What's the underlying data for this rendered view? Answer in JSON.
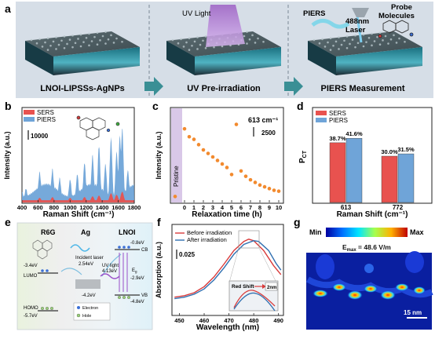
{
  "panel_letters": {
    "a": "a",
    "b": "b",
    "c": "c",
    "d": "d",
    "e": "e",
    "f": "f",
    "g": "g"
  },
  "panel_a": {
    "stage1": "LNOI-LIPSSs-AgNPs",
    "stage2": "UV Pre-irradiation",
    "stage3": "PIERS Measurement",
    "uv_light": "UV Light",
    "piers": "PIERS",
    "laser": "488nm\nLaser",
    "probe": "Probe\nMolecules",
    "colors": {
      "banner": "#d5dde6",
      "arrow": "#3a8f95",
      "uv": "#a675c8"
    }
  },
  "panel_b": {
    "xlabel": "Raman Shift (cm⁻¹)",
    "ylabel": "Intensity (a.u.)",
    "scalebar": "10000",
    "legend": [
      "SERS",
      "PIERS"
    ],
    "xticks": [
      "400",
      "600",
      "800",
      "1000",
      "1200",
      "1400",
      "1600",
      "1800"
    ],
    "chart_data": {
      "type": "area",
      "x_range": [
        400,
        1800
      ],
      "series": [
        {
          "name": "SERS",
          "color": "#e8524f",
          "peaks": [
            [
              400,
              0.03
            ],
            [
              620,
              0.06
            ],
            [
              780,
              0.07
            ],
            [
              1000,
              0.06
            ],
            [
              1180,
              0.07
            ],
            [
              1280,
              0.08
            ],
            [
              1360,
              0.09
            ],
            [
              1510,
              0.12
            ],
            [
              1580,
              0.1
            ],
            [
              1650,
              0.14
            ],
            [
              1800,
              0.03
            ]
          ]
        },
        {
          "name": "PIERS",
          "color": "#6fa4d8",
          "peaks": [
            [
              400,
              0.12
            ],
            [
              450,
              0.16
            ],
            [
              620,
              0.38
            ],
            [
              780,
              0.42
            ],
            [
              870,
              0.3
            ],
            [
              1000,
              0.28
            ],
            [
              1090,
              0.35
            ],
            [
              1180,
              0.5
            ],
            [
              1280,
              0.6
            ],
            [
              1360,
              0.72
            ],
            [
              1440,
              0.48
            ],
            [
              1510,
              0.82
            ],
            [
              1580,
              0.64
            ],
            [
              1620,
              0.85
            ],
            [
              1650,
              0.95
            ],
            [
              1720,
              0.4
            ],
            [
              1800,
              0.2
            ]
          ]
        }
      ]
    }
  },
  "panel_c": {
    "xlabel": "Relaxation time (h)",
    "ylabel": "Intensity (a.u.)",
    "peak_label": "613 cm⁻¹",
    "scalebar": "2500",
    "pristine": "Pristine",
    "xticks": [
      "0",
      "1",
      "2",
      "3",
      "4",
      "5",
      "6",
      "7",
      "8",
      "9",
      "10"
    ],
    "chart_data": {
      "type": "scatter",
      "xlim": [
        -1.5,
        10.5
      ],
      "ylim": [
        0,
        1
      ],
      "pristine_point": {
        "x": -1,
        "y": 0.05
      },
      "points": [
        [
          0,
          0.82
        ],
        [
          0.5,
          0.73
        ],
        [
          1,
          0.7
        ],
        [
          1.5,
          0.64
        ],
        [
          2,
          0.58
        ],
        [
          2.5,
          0.54
        ],
        [
          3,
          0.5
        ],
        [
          3.5,
          0.46
        ],
        [
          4,
          0.42
        ],
        [
          4.5,
          0.38
        ],
        [
          5,
          0.3
        ],
        [
          5.5,
          0.87
        ],
        [
          6,
          0.34
        ],
        [
          6.5,
          0.28
        ],
        [
          7,
          0.24
        ],
        [
          7.5,
          0.21
        ],
        [
          8,
          0.18
        ],
        [
          8.5,
          0.16
        ],
        [
          9,
          0.14
        ],
        [
          9.5,
          0.12
        ],
        [
          10,
          0.11
        ]
      ]
    }
  },
  "panel_d": {
    "ylabel": "P",
    "ylabel_sub": "CT",
    "xlabel": "Raman Shift (cm⁻¹)",
    "legend": [
      "SERS",
      "PIERS"
    ],
    "chart_data": {
      "type": "bar",
      "categories": [
        "613",
        "772"
      ],
      "series": [
        {
          "name": "SERS",
          "color": "#e8524f",
          "values": [
            38.7,
            30.0
          ],
          "labels": [
            "38.7%",
            "30.0%"
          ]
        },
        {
          "name": "PIERS",
          "color": "#6fa4d8",
          "values": [
            41.6,
            31.5
          ],
          "labels": [
            "41.6%",
            "31.5%"
          ]
        }
      ],
      "ylim": [
        0,
        60
      ]
    }
  },
  "panel_e": {
    "r6g": "R6G",
    "ag": "Ag",
    "lnoi": "LNOI",
    "lumo": "LUMO",
    "homo": "HOMO",
    "lumo_e": "-3.4eV",
    "homo_e": "-5.7eV",
    "incident": "Incident laser",
    "incident_e": "2.54eV",
    "ag_e": "-4.2eV",
    "uv": "UV light",
    "uv_e": "4.13eV",
    "cb": "CB",
    "vb": "VB",
    "cb_e": "-0.8eV",
    "vb_e": "-4.8eV",
    "eg": "E",
    "eg_sub": "g",
    "eg_e": "-2.9eV",
    "legend_e": "Electron",
    "legend_h": "Hole"
  },
  "panel_f": {
    "xlabel": "Wavelength (nm)",
    "ylabel": "Absorption (a.u.)",
    "scalebar": "0.025",
    "legend": [
      "Before irradiation",
      "After irradiation"
    ],
    "red_shift": "Red Shift",
    "shift_val": "2nm",
    "xticks": [
      "450",
      "460",
      "470",
      "480",
      "490"
    ],
    "chart_data": {
      "type": "line",
      "xlim": [
        447,
        492
      ],
      "series": [
        {
          "name": "Before irradiation",
          "color": "#d93b3b",
          "points": [
            [
              448,
              0.18
            ],
            [
              452,
              0.2
            ],
            [
              456,
              0.24
            ],
            [
              460,
              0.32
            ],
            [
              464,
              0.45
            ],
            [
              468,
              0.62
            ],
            [
              472,
              0.8
            ],
            [
              476,
              0.92
            ],
            [
              478,
              0.95
            ],
            [
              480,
              0.93
            ],
            [
              484,
              0.8
            ],
            [
              488,
              0.6
            ],
            [
              491,
              0.48
            ]
          ]
        },
        {
          "name": "After irradiation",
          "color": "#2f6fb0",
          "points": [
            [
              448,
              0.16
            ],
            [
              452,
              0.18
            ],
            [
              456,
              0.22
            ],
            [
              460,
              0.29
            ],
            [
              464,
              0.41
            ],
            [
              468,
              0.57
            ],
            [
              472,
              0.75
            ],
            [
              476,
              0.88
            ],
            [
              480,
              0.93
            ],
            [
              482,
              0.92
            ],
            [
              486,
              0.8
            ],
            [
              489,
              0.63
            ],
            [
              491,
              0.54
            ]
          ]
        }
      ]
    }
  },
  "panel_g": {
    "min": "Min",
    "max": "Max",
    "emax": "E",
    "emax_sub": "max",
    "emax_val": " = 48.6 V/m",
    "scalebar": "15 nm"
  }
}
